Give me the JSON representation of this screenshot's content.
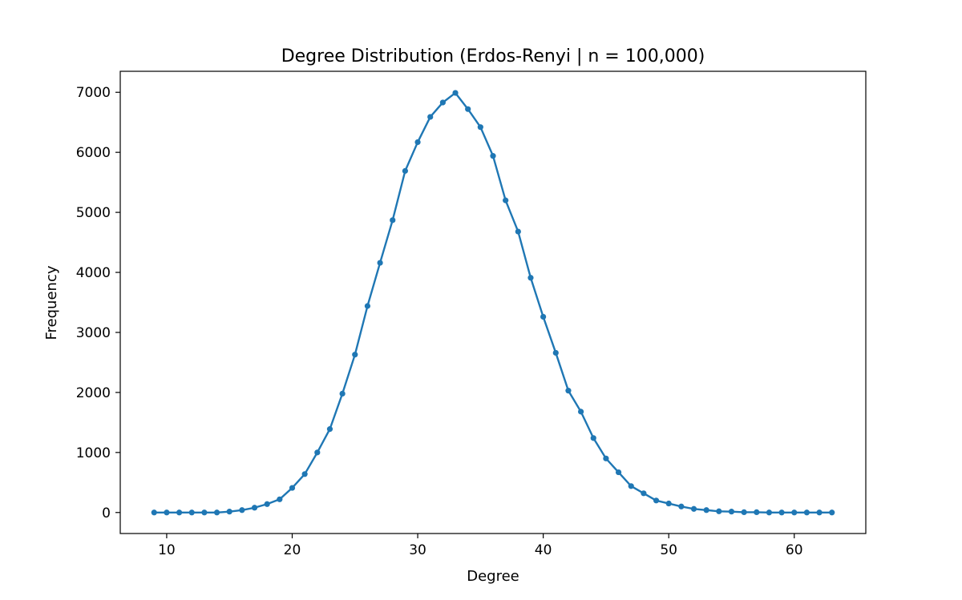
{
  "chart_data": {
    "type": "line",
    "title": "Degree Distribution (Erdos-Renyi | n = 100,000)",
    "xlabel": "Degree",
    "ylabel": "Frequency",
    "xlim": [
      6.3,
      65.7
    ],
    "ylim": [
      -350,
      7350
    ],
    "xticks": [
      10,
      20,
      30,
      40,
      50,
      60
    ],
    "yticks": [
      0,
      1000,
      2000,
      3000,
      4000,
      5000,
      6000,
      7000
    ],
    "grid": false,
    "legend": "none",
    "series": [
      {
        "color": "#1f77b4",
        "marker": "circle",
        "x": [
          9,
          10,
          11,
          12,
          13,
          14,
          15,
          16,
          17,
          18,
          19,
          20,
          21,
          22,
          23,
          24,
          25,
          26,
          27,
          28,
          29,
          30,
          31,
          32,
          33,
          34,
          35,
          36,
          37,
          38,
          39,
          40,
          41,
          42,
          43,
          44,
          45,
          46,
          47,
          48,
          49,
          50,
          51,
          52,
          53,
          54,
          55,
          56,
          57,
          58,
          59,
          60,
          61,
          62,
          63
        ],
        "y": [
          0,
          0,
          0,
          0,
          0,
          0,
          15,
          40,
          80,
          140,
          220,
          410,
          640,
          1000,
          1390,
          1980,
          2630,
          3440,
          4160,
          4870,
          5690,
          6170,
          6590,
          6830,
          6990,
          6720,
          6420,
          5940,
          5200,
          4680,
          3910,
          3260,
          2660,
          2030,
          1680,
          1240,
          900,
          670,
          440,
          320,
          200,
          150,
          100,
          60,
          40,
          20,
          15,
          5,
          5,
          0,
          0,
          0,
          0,
          0,
          0
        ]
      }
    ]
  }
}
